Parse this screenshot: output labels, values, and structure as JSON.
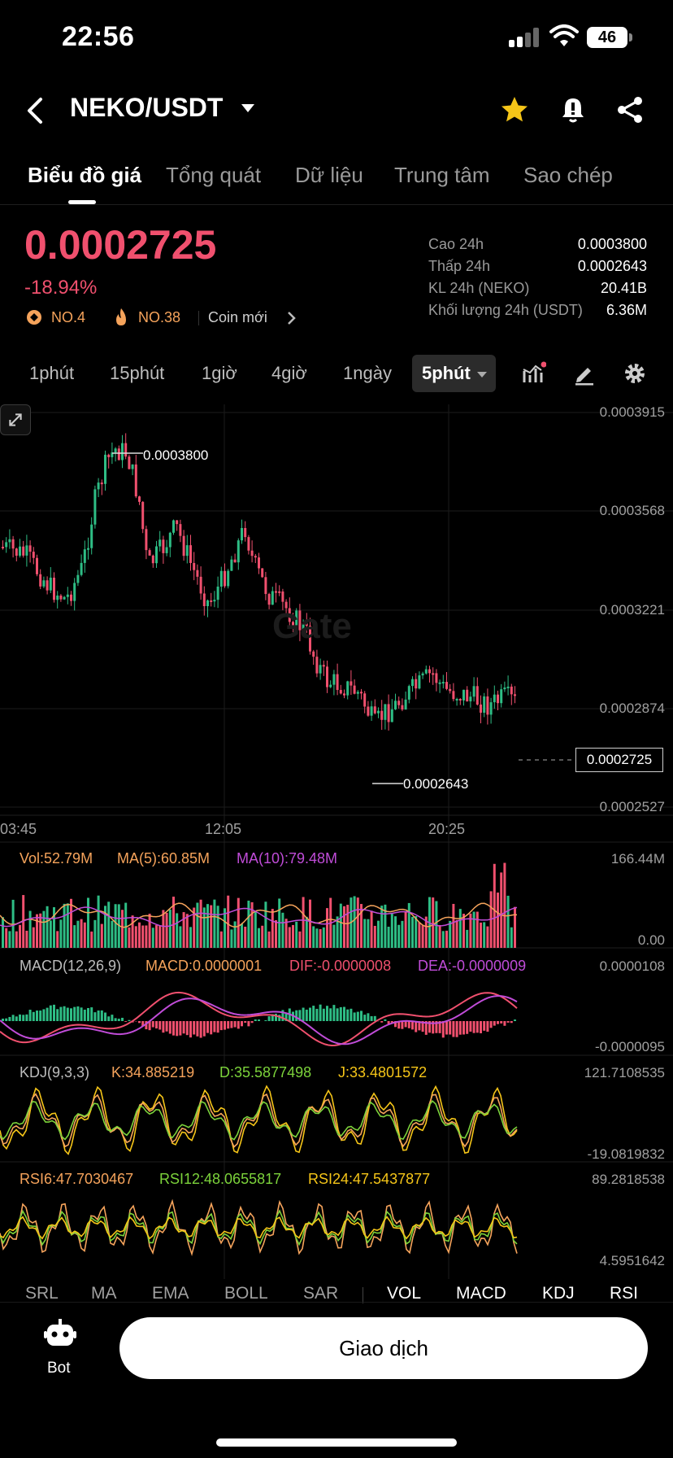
{
  "status_bar": {
    "time": "22:56",
    "battery": "46"
  },
  "header": {
    "pair": "NEKO/USDT"
  },
  "tabs": [
    "Biểu đồ giá",
    "Tổng quát",
    "Dữ liệu",
    "Trung tâm",
    "Sao chép"
  ],
  "price": {
    "last": "0.0002725",
    "change": "-18.94%",
    "badges": [
      "NO.4",
      "NO.38",
      "Coin mới"
    ],
    "stats": [
      {
        "label": "Cao 24h",
        "value": "0.0003800"
      },
      {
        "label": "Thấp 24h",
        "value": "0.0002643"
      },
      {
        "label": "KL 24h (NEKO)",
        "value": "20.41B"
      },
      {
        "label": "Khối lượng 24h (USDT)",
        "value": "6.36M"
      }
    ]
  },
  "intervals": {
    "items": [
      "1phút",
      "15phút",
      "1giờ",
      "4giờ",
      "1ngày"
    ],
    "active": "5phút"
  },
  "chart": {
    "watermark": "Gate",
    "price_axis": [
      "0.0003915",
      "0.0003568",
      "0.0003221",
      "0.0002874",
      "0.0002527"
    ],
    "high_mark": "0.0003800",
    "low_mark": "0.0002643",
    "current_price": "0.0002725",
    "time_axis": [
      "03:45",
      "12:05",
      "20:25"
    ],
    "volume": {
      "vol": "Vol:52.79M",
      "ma5": "MA(5):60.85M",
      "ma10": "MA(10):79.48M",
      "axis_top": "166.44M",
      "axis_bottom": "0.00"
    },
    "macd": {
      "title": "MACD(12,26,9)",
      "macd": "MACD:0.0000001",
      "dif": "DIF:-0.0000008",
      "dea": "DEA:-0.0000009",
      "axis_top": "0.0000108",
      "axis_bottom": "-0.0000095"
    },
    "kdj": {
      "title": "KDJ(9,3,3)",
      "k": "K:34.885219",
      "d": "D:35.5877498",
      "j": "J:33.4801572",
      "axis_top": "121.7108535",
      "axis_bottom": "-19.0819832"
    },
    "rsi": {
      "rsi6": "RSI6:47.7030467",
      "rsi12": "RSI12:48.0655817",
      "rsi24": "RSI24:47.5437877",
      "axis_top": "89.2818538",
      "axis_bottom": "4.5951642"
    }
  },
  "indicator_tabs": [
    "SRL",
    "MA",
    "EMA",
    "BOLL",
    "SAR",
    "VOL",
    "MACD",
    "KDJ",
    "RSI"
  ],
  "footer": {
    "bot_label": "Bot",
    "trade_button": "Giao dịch"
  },
  "colors": {
    "up": "#2ebd85",
    "down": "#f0506e",
    "ma5": "#f5a35b",
    "ma10": "#c04cd8"
  }
}
